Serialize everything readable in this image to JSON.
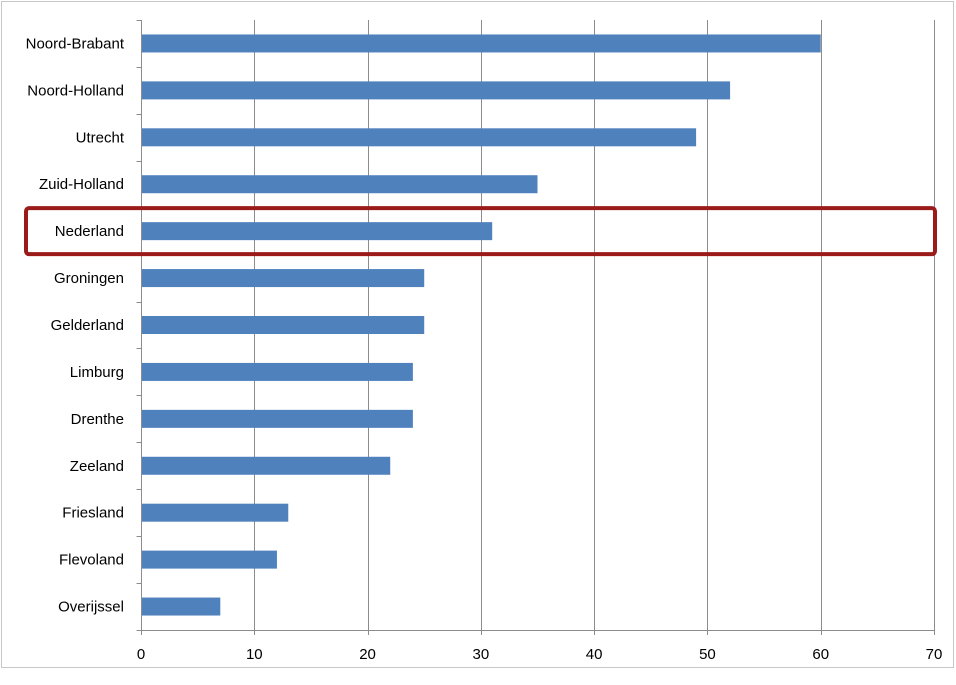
{
  "chart_data": {
    "type": "bar",
    "orientation": "horizontal",
    "categories": [
      "Noord-Brabant",
      "Noord-Holland",
      "Utrecht",
      "Zuid-Holland",
      "Nederland",
      "Groningen",
      "Gelderland",
      "Limburg",
      "Drenthe",
      "Zeeland",
      "Friesland",
      "Flevoland",
      "Overijssel"
    ],
    "values": [
      60,
      52,
      49,
      35,
      31,
      25,
      25,
      24,
      24,
      22,
      13,
      12,
      7
    ],
    "xlim": [
      0,
      70
    ],
    "xticks": [
      0,
      10,
      20,
      30,
      40,
      50,
      60,
      70
    ],
    "grid": true,
    "legend": "none",
    "highlighted_category": "Nederland",
    "colors": {
      "bar": "#4f81bd",
      "highlight_box": "#9b1b1b",
      "grid": "#8c8c8c",
      "axis": "#8c8c8c",
      "border": "#c8c8c8"
    }
  }
}
